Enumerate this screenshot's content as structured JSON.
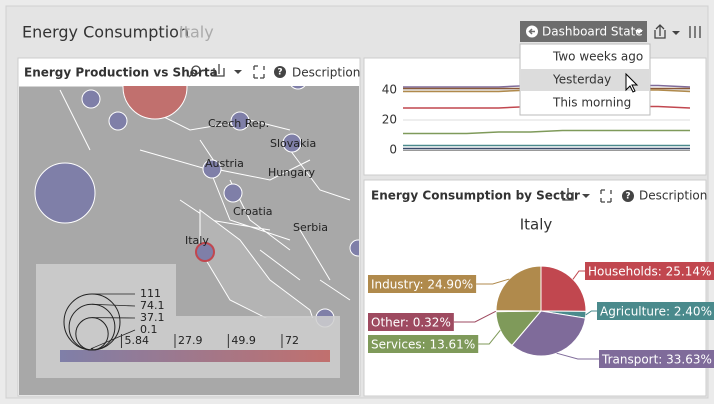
{
  "header": {
    "title": "Energy Consumption",
    "subtitle": "Italy"
  },
  "dashboard_state": {
    "button": "Dashboard State",
    "items": [
      "Two weeks ago",
      "Yesterday",
      "This morning"
    ],
    "selected": 1
  },
  "map_panel": {
    "title": "Energy Production vs Shorta",
    "description": "Description",
    "regions": [
      "Czech Rep.",
      "Slovakia",
      "Austria",
      "Hungary",
      "Croatia",
      "Italy",
      "Serbia"
    ],
    "size_legend": {
      "values": [
        111,
        74.1,
        37.1,
        0.1
      ]
    },
    "color_legend": {
      "ticks": [
        5.84,
        27.9,
        49.9,
        72
      ]
    }
  },
  "line_panel": {
    "chart_data": {
      "type": "line",
      "ylim": [
        -4,
        44
      ],
      "yticks": [
        0,
        20,
        40
      ],
      "grid": true,
      "series": [
        {
          "color": "#7f6b9a",
          "values": [
            42,
            42,
            42,
            42,
            43,
            43,
            43,
            43,
            43,
            42
          ]
        },
        {
          "color": "#8a5a3a",
          "values": [
            41,
            41,
            41,
            41,
            41,
            41,
            41,
            41,
            41,
            41
          ]
        },
        {
          "color": "#b08a4c",
          "values": [
            39,
            39,
            39,
            39,
            40,
            40,
            40,
            40,
            40,
            39
          ]
        },
        {
          "color": "#c1474f",
          "values": [
            28,
            28,
            28,
            28,
            29,
            29,
            29,
            29,
            29,
            28
          ]
        },
        {
          "color": "#7f9a5a",
          "values": [
            11,
            11,
            11,
            12,
            12,
            13,
            13,
            13,
            13,
            13
          ]
        },
        {
          "color": "#4a8a8c",
          "values": [
            3,
            3,
            3,
            3,
            3,
            3,
            3,
            3,
            3,
            3
          ]
        },
        {
          "color": "#3a4a6a",
          "values": [
            1,
            1,
            1,
            1,
            1,
            1,
            1,
            1,
            1,
            1
          ]
        }
      ]
    }
  },
  "pie_panel": {
    "title": "Energy Consumption by Sector",
    "description": "Description",
    "chart_data": {
      "type": "pie",
      "title": "Italy",
      "values": [
        25.14,
        2.4,
        33.63,
        13.61,
        0.32,
        24.9
      ],
      "value_labels": [
        "Households: 25.14%",
        "Agriculture: 2.40%",
        "Transport: 33.63%",
        "Services: 13.61%",
        "Other: 0.32%",
        "Industry: 24.90%"
      ],
      "colors": [
        "#c1474f",
        "#4a8a8c",
        "#7f6b9a",
        "#7f9a5a",
        "#9e4a60",
        "#b08a4c"
      ]
    }
  }
}
